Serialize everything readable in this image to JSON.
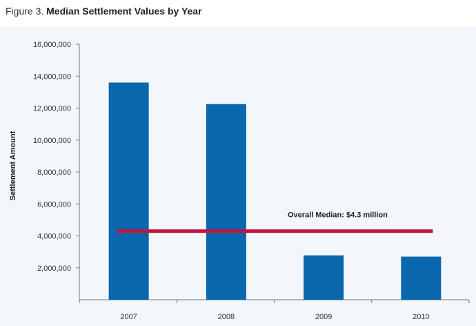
{
  "figure": {
    "prefix": "Figure 3.",
    "title": "Median Settlement Values by Year"
  },
  "chart_data": {
    "type": "bar",
    "title": "Median Settlement Values by Year",
    "xlabel": "",
    "ylabel": "Settlement Amount",
    "categories": [
      "2007",
      "2008",
      "2009",
      "2010"
    ],
    "values": [
      13600000,
      12250000,
      2780000,
      2700000
    ],
    "ylim": [
      0,
      16000000
    ],
    "yticks": [
      2000000,
      4000000,
      6000000,
      8000000,
      10000000,
      12000000,
      14000000,
      16000000
    ],
    "ytick_labels": [
      "2,000,000",
      "4,000,000",
      "6,000,000",
      "8,000,000",
      "10,000,000",
      "12,000,000",
      "14,000,000",
      "16,000,000"
    ],
    "reference_line": {
      "value": 4300000,
      "label": "Overall Median: $4.3 million",
      "color": "#c0143c"
    },
    "bar_color": "#0a66ad",
    "grid": false,
    "legend": "none"
  }
}
